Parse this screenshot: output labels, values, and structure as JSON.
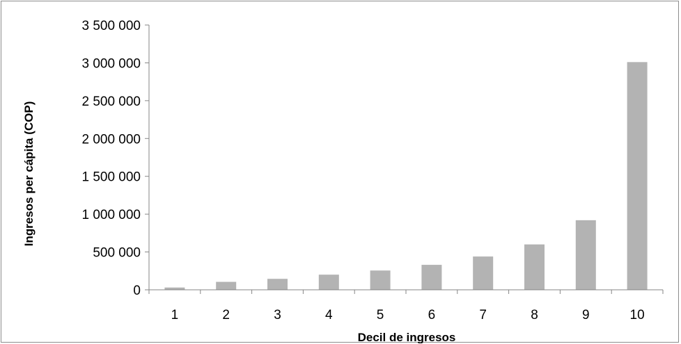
{
  "chart_data": {
    "type": "bar",
    "title": "",
    "xlabel": "Decil de ingresos",
    "ylabel": "Ingresos per cápita (COP)",
    "categories": [
      "1",
      "2",
      "3",
      "4",
      "5",
      "6",
      "7",
      "8",
      "9",
      "10"
    ],
    "values": [
      30000,
      105000,
      145000,
      200000,
      255000,
      330000,
      440000,
      600000,
      920000,
      3010000
    ],
    "ylim": [
      0,
      3500000
    ],
    "yticks": [
      0,
      500000,
      1000000,
      1500000,
      2000000,
      2500000,
      3000000,
      3500000
    ],
    "ytick_labels": [
      "0",
      "500 000",
      "1 000 000",
      "1 500 000",
      "2 000 000",
      "2 500 000",
      "3 000 000",
      "3 500 000"
    ],
    "grid": false,
    "legend": "none",
    "bar_color": "#b3b3b3",
    "axis_color": "#868686"
  }
}
